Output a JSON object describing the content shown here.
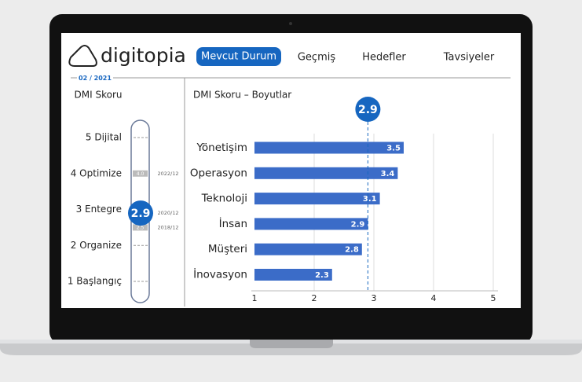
{
  "header": {
    "logo": "digitopia",
    "nav": [
      "Mevcut Durum",
      "Geçmiş",
      "Hedefler",
      "Tavsiyeler"
    ],
    "period": "02 / 2021"
  },
  "dmi_panel": {
    "title": "DMI Skoru",
    "levels": [
      {
        "value": 5,
        "label": "5 Dijital"
      },
      {
        "value": 4,
        "label": "4 Optimize"
      },
      {
        "value": 3,
        "label": "3 Entegre"
      },
      {
        "value": 2,
        "label": "2 Organize"
      },
      {
        "value": 1,
        "label": "1 Başlangıç"
      }
    ],
    "score": 2.9,
    "score_date": "2020/12",
    "markers": [
      {
        "value": {
          "value": 4,
          "label": "4.0"
        },
        "date": "2022/12"
      },
      {
        "value": 2.5,
        "date": "2018/12"
      }
    ]
  },
  "chart_data": {
    "type": "bar",
    "orientation": "horizontal",
    "title": "DMI Skoru – Boyutlar",
    "categories": [
      "Yönetişim",
      "Operasyon",
      "Teknoloji",
      "İnsan",
      "Müşteri",
      "İnovasyon"
    ],
    "values": [
      3.5,
      3.4,
      3.1,
      2.9,
      2.8,
      2.3
    ],
    "color": "#3b6cc8",
    "xlim": [
      1,
      5
    ],
    "xticks": [
      1,
      2,
      3,
      4,
      5
    ],
    "grid": true,
    "reference_line": {
      "value": 2.9,
      "color": "#1666c0"
    }
  }
}
